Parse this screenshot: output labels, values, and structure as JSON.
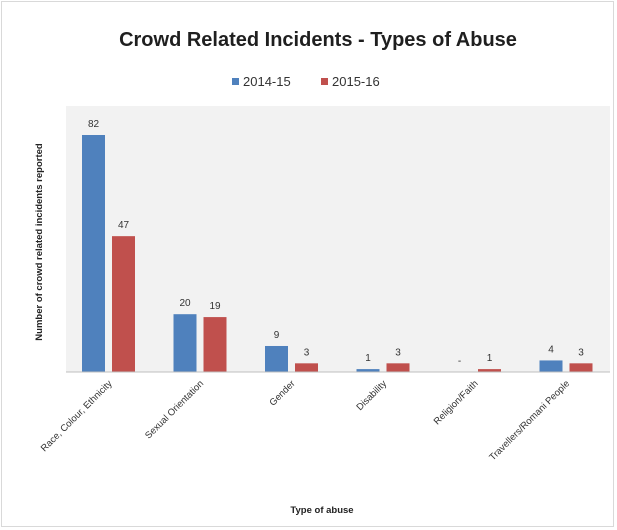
{
  "chart_data": {
    "type": "bar",
    "title": "Crowd Related Incidents - Types of Abuse",
    "xlabel": "Type of abuse",
    "ylabel": "Number of crowd related incidents reported",
    "categories": [
      "Race, Colour, Ethnicity",
      "Sexual Orientation",
      "Gender",
      "Disability",
      "Religion/Faith",
      "Travellers/Romani People"
    ],
    "series": [
      {
        "name": "2014-15",
        "color": "#4f81bd",
        "values": [
          82,
          20,
          9,
          1,
          0,
          4
        ],
        "labels": [
          "82",
          "20",
          "9",
          "1",
          "-",
          "4"
        ]
      },
      {
        "name": "2015-16",
        "color": "#c0504d",
        "values": [
          47,
          19,
          3,
          3,
          1,
          3
        ],
        "labels": [
          "47",
          "19",
          "3",
          "3",
          "1",
          "3"
        ]
      }
    ],
    "ylim": [
      0,
      90
    ],
    "grid": false,
    "legend_position": "top",
    "plot_background": "#f2f2f2"
  }
}
